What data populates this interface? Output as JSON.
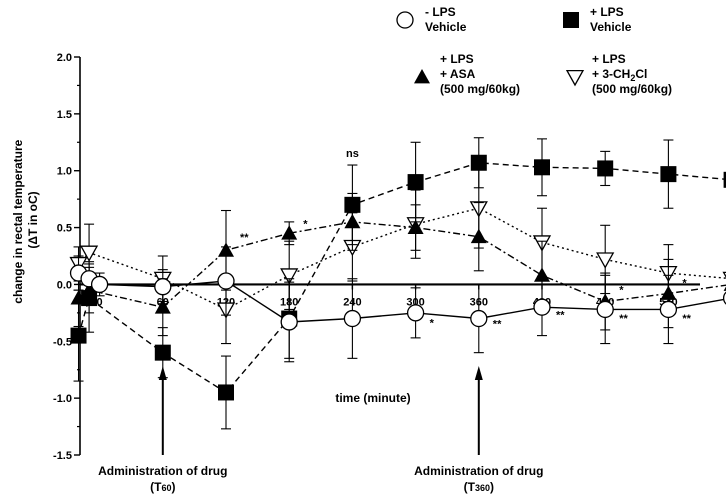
{
  "chart_data": {
    "type": "line",
    "ylabel_line1": "change in rectal temperature",
    "ylabel_line2_prefix": "(ΔT in ",
    "ylabel_line2_unit": "oC",
    "ylabel_line2_suffix": ")",
    "xlabel": "time (minute)",
    "ylim": [
      -1.5,
      2.0
    ],
    "xlim": [
      -30,
      570
    ],
    "yticks": [
      2.0,
      1.5,
      1.0,
      0.5,
      0.0,
      -0.5,
      -1.0,
      -1.5
    ],
    "ytick_labels": [
      "2.0",
      "1.5",
      "1.0",
      "0.5",
      "0.0",
      "-0.5",
      "-1.0",
      "-1.5"
    ],
    "xticks": [
      0,
      60,
      120,
      180,
      240,
      300,
      360,
      420,
      480,
      540
    ],
    "xtick_labels": [
      "0",
      "60",
      "120",
      "180",
      "240",
      "300",
      "360",
      "420",
      "480",
      "540"
    ],
    "x": [
      -20,
      -10,
      0,
      60,
      120,
      180,
      240,
      300,
      360,
      420,
      480,
      540,
      600
    ],
    "series": [
      {
        "name_lines": [
          "- LPS",
          "Vehicle"
        ],
        "marker": "circle-open",
        "line": "solid",
        "values": [
          0.1,
          0.05,
          0.0,
          -0.02,
          0.03,
          -0.33,
          -0.3,
          -0.25,
          -0.3,
          -0.2,
          -0.22,
          -0.22,
          -0.12
        ],
        "errors": [
          0.15,
          0.15,
          0.1,
          0.15,
          0.3,
          0.35,
          0.35,
          0.22,
          0.3,
          0.25,
          0.3,
          0.3,
          0.3
        ]
      },
      {
        "name_lines": [
          "+ LPS",
          "Vehicle"
        ],
        "marker": "square-filled",
        "line": "dashed",
        "values": [
          -0.45,
          -0.12,
          null,
          -0.6,
          -0.95,
          -0.3,
          0.7,
          0.9,
          1.07,
          1.03,
          1.02,
          0.97,
          0.92
        ],
        "errors": [
          0.4,
          0.3,
          null,
          0.22,
          0.32,
          0.35,
          0.35,
          0.35,
          0.22,
          0.25,
          0.15,
          0.3,
          0.15
        ]
      },
      {
        "name_lines": [
          "+ LPS",
          "+ ASA",
          "(500 mg/60kg)"
        ],
        "marker": "triangle-up-filled",
        "line": "dash-dot",
        "values": [
          -0.12,
          -0.05,
          null,
          -0.2,
          0.3,
          0.45,
          0.55,
          0.5,
          0.42,
          0.08,
          -0.15,
          -0.08,
          0.0
        ],
        "errors": [
          0.25,
          0.2,
          null,
          0.25,
          0.35,
          0.1,
          0.25,
          0.2,
          0.3,
          0.3,
          0.25,
          0.3,
          0.35
        ]
      },
      {
        "name_lines": [
          "+ LPS",
          "+ 3-CH",
          "2",
          "Cl",
          "(500 mg/60kg)"
        ],
        "marker": "triangle-down-open",
        "line": "dotted",
        "values": [
          0.18,
          0.28,
          null,
          0.05,
          -0.22,
          0.08,
          0.33,
          0.53,
          0.67,
          0.37,
          0.22,
          0.1,
          0.05
        ],
        "errors": [
          0.15,
          0.25,
          null,
          0.2,
          0.3,
          0.3,
          0.3,
          0.3,
          0.35,
          0.3,
          0.3,
          0.25,
          0.3
        ]
      }
    ],
    "annotations": [
      {
        "text": "ns",
        "x": 240,
        "y": 1.12
      },
      {
        "text": "**",
        "x": 120,
        "y": 0.38
      },
      {
        "text": "*",
        "x": 180,
        "y": 0.5
      },
      {
        "text": "*",
        "x": 300,
        "y": -0.37
      },
      {
        "text": "**",
        "x": 360,
        "y": -0.38
      },
      {
        "text": "**",
        "x": 420,
        "y": -0.3
      },
      {
        "text": "**",
        "x": 480,
        "y": -0.33
      },
      {
        "text": "**",
        "x": 540,
        "y": -0.33
      },
      {
        "text": "*",
        "x": 600,
        "y": -0.25
      },
      {
        "text": "*",
        "x": 480,
        "y": -0.08
      },
      {
        "text": "*",
        "x": 540,
        "y": -0.02
      },
      {
        "text": "*",
        "x": 600,
        "y": -0.02
      }
    ],
    "arrows": [
      {
        "x": 60,
        "label": "Administration of drug",
        "sub_prefix": "(T",
        "sub": "60",
        "sub_suffix": ")"
      },
      {
        "x": 360,
        "label": "Administration of drug",
        "sub_prefix": "(T",
        "sub": "360",
        "sub_suffix": ")"
      }
    ]
  }
}
